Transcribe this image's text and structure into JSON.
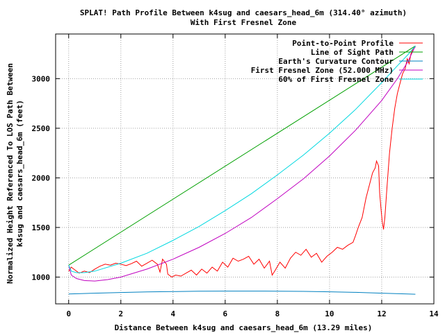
{
  "chart_data": {
    "type": "line",
    "title": "SPLAT! Path Profile Between k4sug and caesars_head_6m (314.40° azimuth)",
    "subtitle": "With First Fresnel Zone",
    "xlabel": "Distance Between k4sug and caesars_head_6m (13.29 miles)",
    "ylabel": [
      "Normalized Height Referenced To LOS Path Between",
      "k4sug and caesars_head_6m (feet)"
    ],
    "xlim": [
      -0.5,
      14
    ],
    "ylim": [
      730,
      3450
    ],
    "x_ticks": [
      "0",
      "2",
      "4",
      "6",
      "8",
      "10",
      "12",
      "14"
    ],
    "y_ticks": [
      "1000",
      "1500",
      "2000",
      "2500",
      "3000"
    ],
    "grid": true,
    "legend_position": "top-right",
    "series": [
      {
        "name": "Point-to-Point Profile",
        "color": "#ff0000",
        "points": [
          [
            0.0,
            1060
          ],
          [
            0.1,
            1100
          ],
          [
            0.25,
            1070
          ],
          [
            0.4,
            1040
          ],
          [
            0.6,
            1060
          ],
          [
            0.8,
            1045
          ],
          [
            1.0,
            1080
          ],
          [
            1.2,
            1110
          ],
          [
            1.4,
            1130
          ],
          [
            1.6,
            1120
          ],
          [
            1.8,
            1140
          ],
          [
            2.0,
            1130
          ],
          [
            2.2,
            1115
          ],
          [
            2.4,
            1135
          ],
          [
            2.6,
            1160
          ],
          [
            2.8,
            1110
          ],
          [
            3.0,
            1140
          ],
          [
            3.2,
            1170
          ],
          [
            3.4,
            1130
          ],
          [
            3.5,
            1050
          ],
          [
            3.6,
            1180
          ],
          [
            3.75,
            1130
          ],
          [
            3.8,
            1030
          ],
          [
            3.95,
            1000
          ],
          [
            4.1,
            1020
          ],
          [
            4.3,
            1010
          ],
          [
            4.5,
            1040
          ],
          [
            4.7,
            1070
          ],
          [
            4.9,
            1020
          ],
          [
            5.1,
            1080
          ],
          [
            5.3,
            1040
          ],
          [
            5.5,
            1100
          ],
          [
            5.7,
            1060
          ],
          [
            5.9,
            1150
          ],
          [
            6.1,
            1100
          ],
          [
            6.3,
            1190
          ],
          [
            6.5,
            1160
          ],
          [
            6.7,
            1180
          ],
          [
            6.9,
            1210
          ],
          [
            7.1,
            1130
          ],
          [
            7.3,
            1180
          ],
          [
            7.5,
            1090
          ],
          [
            7.7,
            1160
          ],
          [
            7.8,
            1020
          ],
          [
            7.9,
            1060
          ],
          [
            8.1,
            1150
          ],
          [
            8.3,
            1090
          ],
          [
            8.5,
            1190
          ],
          [
            8.7,
            1250
          ],
          [
            8.9,
            1220
          ],
          [
            9.1,
            1280
          ],
          [
            9.3,
            1200
          ],
          [
            9.5,
            1240
          ],
          [
            9.7,
            1150
          ],
          [
            9.9,
            1210
          ],
          [
            10.1,
            1250
          ],
          [
            10.3,
            1300
          ],
          [
            10.5,
            1280
          ],
          [
            10.7,
            1320
          ],
          [
            10.9,
            1350
          ],
          [
            11.0,
            1420
          ],
          [
            11.1,
            1500
          ],
          [
            11.25,
            1600
          ],
          [
            11.4,
            1800
          ],
          [
            11.5,
            1900
          ],
          [
            11.55,
            1950
          ],
          [
            11.65,
            2050
          ],
          [
            11.75,
            2100
          ],
          [
            11.8,
            2170
          ],
          [
            11.88,
            2120
          ],
          [
            11.92,
            1850
          ],
          [
            11.97,
            1700
          ],
          [
            12.02,
            1560
          ],
          [
            12.07,
            1480
          ],
          [
            12.12,
            1600
          ],
          [
            12.2,
            1900
          ],
          [
            12.3,
            2250
          ],
          [
            12.4,
            2500
          ],
          [
            12.5,
            2700
          ],
          [
            12.6,
            2850
          ],
          [
            12.7,
            2950
          ],
          [
            12.8,
            3050
          ],
          [
            12.9,
            3100
          ],
          [
            12.98,
            3200
          ],
          [
            13.05,
            3150
          ],
          [
            13.12,
            3250
          ],
          [
            13.2,
            3300
          ],
          [
            13.29,
            3320
          ]
        ]
      },
      {
        "name": "Line of Sight Path",
        "color": "#00a000",
        "points": [
          [
            0.0,
            1120
          ],
          [
            13.29,
            3330
          ]
        ]
      },
      {
        "name": "Earth's Curvature Contour",
        "color": "#0080c0",
        "points": [
          [
            0.0,
            830
          ],
          [
            1.0,
            838
          ],
          [
            2.0,
            845
          ],
          [
            3.0,
            850
          ],
          [
            4.0,
            854
          ],
          [
            5.0,
            857
          ],
          [
            6.0,
            859
          ],
          [
            7.0,
            859
          ],
          [
            8.0,
            858
          ],
          [
            9.0,
            856
          ],
          [
            10.0,
            852
          ],
          [
            11.0,
            846
          ],
          [
            12.0,
            838
          ],
          [
            13.0,
            830
          ],
          [
            13.29,
            827
          ]
        ]
      },
      {
        "name": "First Fresnel Zone (52.000 MHz)",
        "color": "#c000c0",
        "points": [
          [
            0.0,
            1120
          ],
          [
            0.1,
            1020
          ],
          [
            0.3,
            985
          ],
          [
            0.6,
            965
          ],
          [
            1.0,
            960
          ],
          [
            1.5,
            975
          ],
          [
            2.0,
            1000
          ],
          [
            3.0,
            1080
          ],
          [
            4.0,
            1180
          ],
          [
            5.0,
            1300
          ],
          [
            6.0,
            1440
          ],
          [
            7.0,
            1600
          ],
          [
            8.0,
            1790
          ],
          [
            9.0,
            1990
          ],
          [
            10.0,
            2220
          ],
          [
            11.0,
            2480
          ],
          [
            12.0,
            2780
          ],
          [
            12.6,
            3000
          ],
          [
            13.0,
            3170
          ],
          [
            13.2,
            3280
          ],
          [
            13.29,
            3330
          ]
        ]
      },
      {
        "name": "60% of First Fresnel Zone",
        "color": "#00d8e0",
        "points": [
          [
            0.0,
            1120
          ],
          [
            0.1,
            1060
          ],
          [
            0.3,
            1045
          ],
          [
            0.6,
            1045
          ],
          [
            1.0,
            1060
          ],
          [
            2.0,
            1140
          ],
          [
            3.0,
            1240
          ],
          [
            4.0,
            1370
          ],
          [
            5.0,
            1510
          ],
          [
            6.0,
            1670
          ],
          [
            7.0,
            1840
          ],
          [
            8.0,
            2030
          ],
          [
            9.0,
            2230
          ],
          [
            10.0,
            2450
          ],
          [
            11.0,
            2690
          ],
          [
            12.0,
            2960
          ],
          [
            12.6,
            3130
          ],
          [
            13.0,
            3240
          ],
          [
            13.29,
            3330
          ]
        ]
      }
    ]
  }
}
